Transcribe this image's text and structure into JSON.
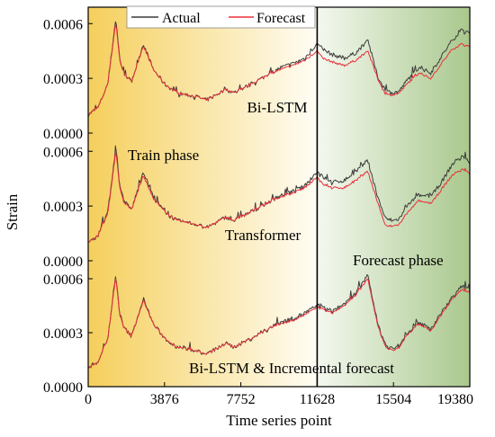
{
  "colors": {
    "actual": "#3c3c3c",
    "forecast": "#e8303a",
    "train_bg_left": "#f5cf5c",
    "train_bg_right": "#fffdf5",
    "forecast_bg_left": "#f4f8ef",
    "forecast_bg_right": "#a9c88d"
  },
  "chart_data": {
    "type": "line",
    "xlabel": "Time series point",
    "ylabel": "Strain",
    "xlim": [
      0,
      19380
    ],
    "x_ticks": [
      0,
      3876,
      7752,
      11628,
      15504,
      19380
    ],
    "x_tick_labels": [
      "0",
      "3876",
      "7752",
      "11628",
      "15504",
      "19380"
    ],
    "split_point": 11628,
    "phase_labels": {
      "train": "Train phase",
      "forecast": "Forecast phase"
    },
    "legend": {
      "position": "top",
      "entries": [
        "Actual",
        "Forecast"
      ]
    },
    "grid": false,
    "panels": [
      {
        "label": "Bi-LSTM",
        "ylim": [
          0,
          0.00069
        ],
        "y_ticks": [
          0,
          0.0003,
          0.0006
        ],
        "y_tick_labels": [
          "0.0000",
          "0.0003",
          "0.0006"
        ],
        "x": [
          0,
          500,
          1000,
          1400,
          1600,
          1800,
          2200,
          2800,
          3300,
          3876,
          4500,
          5000,
          5500,
          6000,
          6500,
          7000,
          7400,
          7752,
          8300,
          8800,
          9300,
          9800,
          10400,
          11000,
          11628,
          11900,
          12400,
          13000,
          13600,
          14200,
          14700,
          15100,
          15504,
          15800,
          16200,
          16800,
          17400,
          18000,
          18500,
          19000,
          19380
        ],
        "series": [
          {
            "name": "Actual",
            "values": [
              0.0001,
              0.00014,
              0.00027,
              0.00063,
              0.00041,
              0.00033,
              0.00028,
              0.00049,
              0.00035,
              0.00027,
              0.00022,
              0.00021,
              0.0002,
              0.00018,
              0.00021,
              0.00024,
              0.00022,
              0.00024,
              0.00027,
              0.0003,
              0.00033,
              0.00036,
              0.00038,
              0.00041,
              0.00049,
              0.00046,
              0.00043,
              0.00041,
              0.00044,
              0.00051,
              0.00031,
              0.00023,
              0.00022,
              0.00023,
              0.00029,
              0.00036,
              0.00033,
              0.00043,
              0.00051,
              0.00057,
              0.00054
            ]
          },
          {
            "name": "Forecast",
            "values": [
              0.0001,
              0.00014,
              0.00027,
              0.00061,
              0.0004,
              0.00033,
              0.00028,
              0.00048,
              0.00035,
              0.00027,
              0.00022,
              0.00021,
              0.0002,
              0.00018,
              0.00021,
              0.00024,
              0.00022,
              0.00024,
              0.00027,
              0.0003,
              0.00033,
              0.00035,
              0.00037,
              0.0004,
              0.00045,
              0.00041,
              0.00039,
              0.00037,
              0.0004,
              0.00045,
              0.0003,
              0.00021,
              0.00021,
              0.00022,
              0.00027,
              0.00033,
              0.0003,
              0.00039,
              0.00046,
              0.00049,
              0.00047
            ]
          }
        ]
      },
      {
        "label": "Transformer",
        "ylim": [
          0,
          0.00069
        ],
        "y_ticks": [
          0,
          0.0003,
          0.0006
        ],
        "y_tick_labels": [
          "0.0000",
          "0.0003",
          "0.0006"
        ],
        "x": [
          0,
          500,
          1000,
          1400,
          1600,
          1800,
          2200,
          2800,
          3300,
          3876,
          4500,
          5000,
          5500,
          6000,
          6500,
          7000,
          7400,
          7752,
          8300,
          8800,
          9300,
          9800,
          10400,
          11000,
          11628,
          11900,
          12400,
          13000,
          13600,
          14200,
          14700,
          15100,
          15504,
          15800,
          16200,
          16800,
          17400,
          18000,
          18500,
          19000,
          19380
        ],
        "series": [
          {
            "name": "Actual",
            "values": [
              0.0001,
              0.00014,
              0.00027,
              0.00062,
              0.00041,
              0.00033,
              0.00028,
              0.00049,
              0.00035,
              0.00027,
              0.00022,
              0.00021,
              0.0002,
              0.00018,
              0.00021,
              0.00024,
              0.00022,
              0.00024,
              0.00027,
              0.0003,
              0.00033,
              0.00036,
              0.00038,
              0.00041,
              0.00049,
              0.00046,
              0.00043,
              0.00044,
              0.00049,
              0.00055,
              0.00035,
              0.00023,
              0.00022,
              0.00023,
              0.0003,
              0.00036,
              0.00035,
              0.00044,
              0.00053,
              0.00057,
              0.00054
            ]
          },
          {
            "name": "Forecast",
            "values": [
              0.0001,
              0.00014,
              0.00026,
              0.0006,
              0.0004,
              0.00032,
              0.00028,
              0.00047,
              0.00034,
              0.00027,
              0.00022,
              0.00021,
              0.0002,
              0.00018,
              0.00021,
              0.00024,
              0.00022,
              0.00024,
              0.00027,
              0.0003,
              0.00033,
              0.00035,
              0.00037,
              0.0004,
              0.00046,
              0.00042,
              0.0004,
              0.0004,
              0.00044,
              0.00049,
              0.00032,
              0.00019,
              0.00019,
              0.0002,
              0.00026,
              0.00033,
              0.00031,
              0.0004,
              0.00047,
              0.0005,
              0.00048
            ]
          }
        ]
      },
      {
        "label": "Bi-LSTM & Incremental forecast",
        "ylim": [
          0,
          0.00069
        ],
        "y_ticks": [
          0,
          0.0003,
          0.0006
        ],
        "y_tick_labels": [
          "0.0000",
          "0.0003",
          "0.0006"
        ],
        "x": [
          0,
          500,
          1000,
          1400,
          1600,
          1800,
          2200,
          2800,
          3300,
          3876,
          4500,
          5000,
          5500,
          6000,
          6500,
          7000,
          7400,
          7752,
          8300,
          8800,
          9300,
          9800,
          10400,
          11000,
          11628,
          11900,
          12400,
          13000,
          13600,
          14200,
          14700,
          15100,
          15504,
          15800,
          16200,
          16800,
          17400,
          18000,
          18500,
          19000,
          19380
        ],
        "series": [
          {
            "name": "Actual",
            "values": [
              0.0001,
              0.00014,
              0.00027,
              0.00062,
              0.00041,
              0.00033,
              0.00028,
              0.00049,
              0.00035,
              0.00027,
              0.00022,
              0.00021,
              0.0002,
              0.00018,
              0.00021,
              0.00024,
              0.00022,
              0.00024,
              0.00027,
              0.0003,
              0.00033,
              0.00036,
              0.00038,
              0.00041,
              0.00045,
              0.00044,
              0.00042,
              0.00046,
              0.00052,
              0.00062,
              0.00035,
              0.00023,
              0.00021,
              0.00023,
              0.0003,
              0.00036,
              0.00032,
              0.00042,
              0.0005,
              0.00056,
              0.00054
            ]
          },
          {
            "name": "Forecast",
            "values": [
              0.0001,
              0.00014,
              0.00027,
              0.00061,
              0.0004,
              0.00033,
              0.00028,
              0.00048,
              0.00035,
              0.00027,
              0.00022,
              0.00021,
              0.0002,
              0.00018,
              0.00021,
              0.00024,
              0.00022,
              0.00024,
              0.00027,
              0.0003,
              0.00033,
              0.00035,
              0.00037,
              0.0004,
              0.00044,
              0.00043,
              0.00041,
              0.00045,
              0.00051,
              0.0006,
              0.00034,
              0.00022,
              0.0002,
              0.00022,
              0.00029,
              0.00035,
              0.00031,
              0.00041,
              0.00049,
              0.00054,
              0.00052
            ]
          }
        ]
      }
    ]
  }
}
